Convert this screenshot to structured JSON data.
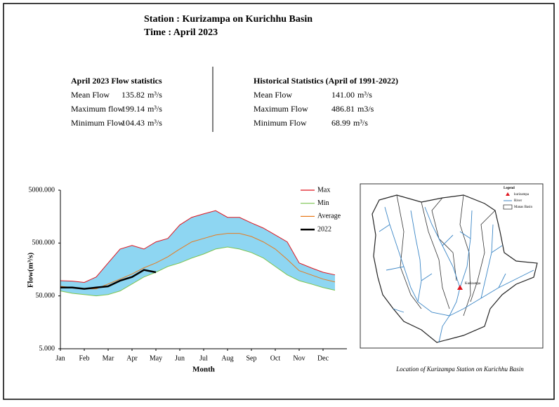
{
  "header": {
    "station": "Station : Kurizampa on Kurichhu Basin",
    "time": "Time : April 2023"
  },
  "current_stats": {
    "title": "April 2023 Flow statistics",
    "rows": [
      {
        "label": "Mean Flow",
        "value": "135.82",
        "unit": "m³/s"
      },
      {
        "label": "Maximum flow",
        "value": "199.14",
        "unit": "m³/s"
      },
      {
        "label": "Minimum Flow",
        "value": "104.43",
        "unit": "m³/s"
      }
    ]
  },
  "historical_stats": {
    "title": "Historical Statistics (April of 1991-2022)",
    "rows": [
      {
        "label": "Mean Flow",
        "value": "141.00",
        "unit": "m³/s"
      },
      {
        "label": "Maximum Flow",
        "value": "486.81",
        "unit": "m3/s"
      },
      {
        "label": "Minimum Flow",
        "value": "68.99",
        "unit": "m³/s"
      }
    ]
  },
  "chart_data": {
    "type": "line",
    "ylabel": "Flow(m³/s)",
    "xlabel": "Month",
    "log_y": true,
    "ylim": [
      5,
      5000
    ],
    "yticks": [
      {
        "value": 5,
        "label": "5.000"
      },
      {
        "value": 50,
        "label": "50.000"
      },
      {
        "value": 500,
        "label": "500.000"
      },
      {
        "value": 5000,
        "label": "5000.000"
      }
    ],
    "categories": [
      "Jan",
      null,
      "Feb",
      null,
      "Mar",
      null,
      "Apr",
      null,
      "May",
      null,
      "Jun",
      null,
      "Jul",
      null,
      "Aug",
      null,
      "Sep",
      null,
      "Oct",
      null,
      "Nov",
      null,
      "Dec",
      null
    ],
    "band_fill": "#8ed6f2",
    "legend": "top-right",
    "series": [
      {
        "name": "Max",
        "color": "#e0141e",
        "values": [
          97,
          95,
          90,
          114,
          210,
          385,
          450,
          385,
          525,
          610,
          1100,
          1530,
          1780,
          2050,
          1530,
          1530,
          1200,
          960,
          710,
          525,
          210,
          170,
          140,
          125
        ]
      },
      {
        "name": "Min",
        "color": "#7cc450",
        "values": [
          62,
          56,
          53,
          50,
          53,
          62,
          84,
          114,
          140,
          180,
          210,
          260,
          310,
          385,
          420,
          385,
          330,
          260,
          180,
          125,
          97,
          84,
          72,
          64
        ]
      },
      {
        "name": "Average",
        "color": "#e87b1e",
        "values": [
          76,
          72,
          68,
          68,
          84,
          104,
          130,
          170,
          210,
          275,
          385,
          525,
          610,
          710,
          760,
          760,
          665,
          525,
          385,
          245,
          150,
          125,
          104,
          92
        ]
      },
      {
        "name": "2022",
        "color": "#000000",
        "values": [
          72,
          72,
          68,
          72,
          76,
          97,
          114,
          155,
          140,
          null,
          null,
          null,
          null,
          null,
          null,
          null,
          null,
          null,
          null,
          null,
          null,
          null,
          null,
          null
        ]
      }
    ]
  },
  "map": {
    "legend_title": "Legend",
    "legend_items": [
      "kurizampa",
      "River",
      "Manas Basin"
    ],
    "station_label": "Kurizampa",
    "caption": "Location of Kurizampa Station on Kurichhu Basin"
  }
}
